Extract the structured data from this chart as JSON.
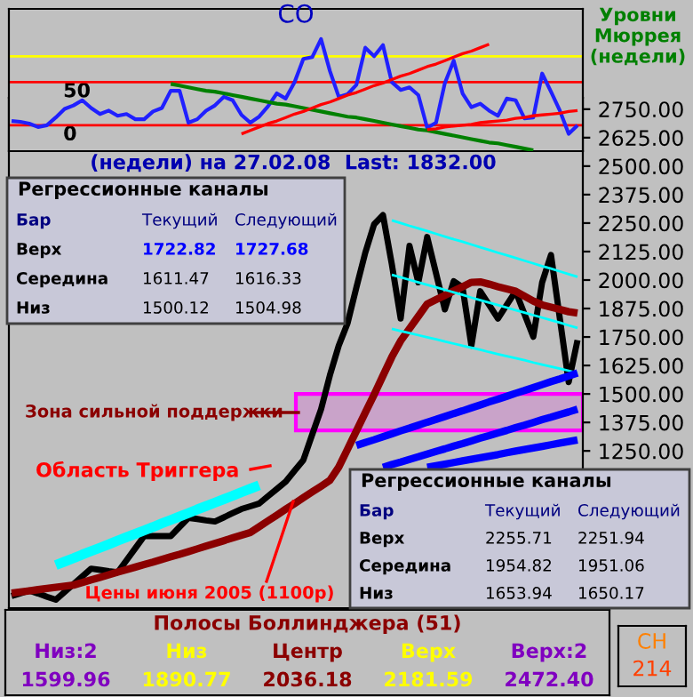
{
  "chart_data": [
    {
      "type": "line",
      "title": "CO",
      "categories": [
        null,
        null,
        null,
        null,
        null,
        null,
        null,
        null,
        null,
        null,
        null,
        null,
        null,
        null,
        null,
        null,
        null,
        null,
        null,
        null,
        null,
        null,
        null,
        null,
        null,
        null,
        null,
        null,
        null,
        null,
        null,
        null,
        null,
        null,
        null,
        null,
        null,
        null,
        null,
        null,
        null,
        null,
        null,
        null,
        null,
        null,
        null,
        null,
        null,
        null,
        null,
        null,
        null,
        null,
        null,
        null,
        null,
        null,
        null,
        null,
        null,
        null,
        null,
        null,
        null
      ],
      "ylim": [
        -30,
        135
      ],
      "yticks": [
        0,
        50
      ],
      "tick_labels": "y",
      "grid": false,
      "legend": false,
      "marker": "none",
      "ref_lines": [
        {
          "axis": "y",
          "value": 0,
          "color": "#ff0000"
        },
        {
          "axis": "y",
          "value": 50,
          "color": "#ff0000"
        },
        {
          "axis": "y",
          "value": 80,
          "color": "#ffff00"
        }
      ],
      "series": [
        {
          "color": "#2020ff",
          "values": [
            5,
            4,
            2,
            -2,
            0,
            9,
            19,
            23,
            29,
            20,
            13,
            17,
            11,
            13,
            7,
            7,
            16,
            20,
            40,
            40,
            3,
            7,
            17,
            23,
            33,
            29,
            12,
            3,
            10,
            22,
            37,
            31,
            50,
            77,
            79,
            100,
            63,
            33,
            36,
            47,
            90,
            80,
            93,
            50,
            41,
            44,
            35,
            -3,
            3,
            49,
            75,
            37,
            21,
            25,
            17,
            11,
            31,
            29,
            8,
            9,
            60,
            39,
            17,
            -10,
            0
          ]
        },
        {
          "color": "#008000",
          "values": [
            null,
            null,
            null,
            null,
            null,
            null,
            null,
            null,
            null,
            null,
            null,
            null,
            null,
            null,
            null,
            null,
            null,
            null,
            48,
            46,
            44,
            42,
            40,
            39,
            37,
            35,
            33,
            31,
            29,
            27,
            25,
            24,
            22,
            20,
            18,
            16,
            14,
            12,
            10,
            9,
            7,
            5,
            3,
            1,
            -1,
            -3,
            -5,
            -6,
            -8,
            -10,
            -12,
            -14,
            -16,
            -18,
            -20,
            -21,
            -23,
            -25,
            -27,
            -29,
            null,
            null,
            null,
            null,
            null
          ]
        },
        {
          "color": "#ff0000",
          "values": [
            null,
            null,
            null,
            null,
            null,
            null,
            null,
            null,
            null,
            null,
            null,
            null,
            null,
            null,
            null,
            null,
            null,
            null,
            null,
            null,
            null,
            null,
            null,
            null,
            null,
            null,
            -10,
            -6,
            -2,
            2,
            5,
            9,
            13,
            16,
            20,
            24,
            27,
            31,
            35,
            38,
            42,
            46,
            49,
            53,
            57,
            60,
            64,
            68,
            71,
            75,
            79,
            83,
            86,
            90,
            94,
            null,
            null,
            null,
            null,
            null,
            null,
            null,
            null,
            null,
            null
          ]
        },
        {
          "color": "#ff0000",
          "values": [
            null,
            null,
            null,
            null,
            null,
            null,
            null,
            null,
            null,
            null,
            null,
            null,
            null,
            null,
            null,
            null,
            null,
            null,
            null,
            null,
            null,
            null,
            null,
            null,
            null,
            null,
            null,
            null,
            null,
            null,
            null,
            null,
            null,
            null,
            null,
            null,
            null,
            null,
            null,
            null,
            null,
            null,
            null,
            null,
            null,
            null,
            null,
            -5,
            -4,
            -2,
            -1,
            0,
            1,
            3,
            4,
            5,
            6,
            8,
            9,
            11,
            12,
            13,
            14,
            16,
            17
          ]
        }
      ]
    },
    {
      "type": "line",
      "title": "(недели) на 27.02.08  Last: 1832.00",
      "ylabel": "Уровни Мюррея (недели)",
      "categories": [
        null,
        null,
        null,
        null,
        null,
        null,
        null,
        null,
        null,
        null,
        null,
        null,
        null,
        null,
        null,
        null,
        null,
        null,
        null,
        null,
        null,
        null,
        null,
        null,
        null,
        null,
        null,
        null,
        null,
        null,
        null,
        null,
        null,
        null,
        null,
        null,
        null,
        null,
        null,
        null,
        null,
        null,
        null,
        null,
        null,
        null,
        null,
        null,
        null,
        null,
        null,
        null,
        null,
        null,
        null,
        null,
        null,
        null,
        null,
        null,
        null,
        null,
        null,
        null,
        null
      ],
      "ylim": [
        560,
        2800
      ],
      "tick_labels": "y",
      "grid": false,
      "legend": false,
      "marker": "none",
      "yticks": [
        {
          "value": 1250,
          "label": "1250.00"
        },
        {
          "value": 1375,
          "label": "1375.00"
        },
        {
          "value": 1500,
          "label": "1500.00"
        },
        {
          "value": 1625,
          "label": "1625.00"
        },
        {
          "value": 1750,
          "label": "1750.00"
        },
        {
          "value": 1875,
          "label": "1875.00"
        },
        {
          "value": 2000,
          "label": "2000.00"
        },
        {
          "value": 2125,
          "label": "2125.00"
        },
        {
          "value": 2250,
          "label": "2250.00"
        },
        {
          "value": 2375,
          "label": "2375.00"
        },
        {
          "value": 2500,
          "label": "2500.00"
        },
        {
          "value": 2625,
          "label": "2625.00"
        },
        {
          "value": 2750,
          "label": "2750.00"
        }
      ],
      "bands": [
        {
          "axis": "y",
          "from": 1340,
          "to": 1500,
          "color": "#ff00ff"
        }
      ],
      "annotations": [
        "Зона сильной поддержки",
        "Область Триггера",
        "Цены июня 2005 (1100р)",
        "Регрессионные каналы",
        "Бар",
        "Текущий",
        "Следующий",
        "Верх",
        "1722.82",
        "1727.68",
        "Середина",
        "1611.47",
        "1616.33",
        "Низ",
        "1500.12",
        "1504.98",
        "Регрессионные каналы",
        "Бар",
        "Текущий",
        "Следующий",
        "Верх",
        "2255.71",
        "2251.94",
        "Середина",
        "1954.82",
        "1951.06",
        "Низ",
        "1653.94",
        "1650.17"
      ],
      "series": [
        {
          "color": "#000000",
          "values": [
            613,
            625,
            637,
            624,
            610,
            597,
            631,
            665,
            699,
            733,
            728,
            722,
            717,
            770,
            823,
            876,
            876,
            876,
            876,
            916,
            956,
            951,
            945,
            940,
            958,
            977,
            995,
            1007,
            1019,
            1051,
            1083,
            1115,
            1163,
            1210,
            1322,
            1433,
            1582,
            1712,
            1811,
            1968,
            2120,
            2245,
            2285,
            2070,
            1831,
            2150,
            1990,
            2189,
            2030,
            1871,
            1995,
            1968,
            1712,
            1951,
            1891,
            1831,
            1891,
            1951,
            1851,
            1751,
            1990,
            2110,
            1831,
            1552,
            1736
          ]
        },
        {
          "color": "#8b0000",
          "values": [
            626,
            631,
            636,
            641,
            646,
            651,
            656,
            661,
            672,
            684,
            695,
            706,
            718,
            729,
            740,
            751,
            762,
            774,
            785,
            796,
            808,
            820,
            832,
            844,
            856,
            868,
            880,
            892,
            917,
            943,
            968,
            994,
            1019,
            1045,
            1070,
            1095,
            1121,
            1179,
            1258,
            1338,
            1418,
            1497,
            1580,
            1662,
            1733,
            1787,
            1841,
            1895,
            1914,
            1933,
            1952,
            1971,
            1990,
            1992,
            1982,
            1971,
            1961,
            1951,
            1929,
            1908,
            1891,
            1881,
            1871,
            1861,
            1855
          ]
        },
        {
          "color": "#00ffff",
          "values": [
            null,
            null,
            null,
            null,
            null,
            null,
            null,
            null,
            null,
            null,
            null,
            null,
            null,
            null,
            null,
            null,
            null,
            null,
            null,
            null,
            null,
            null,
            null,
            null,
            null,
            null,
            null,
            null,
            null,
            null,
            null,
            null,
            null,
            null,
            null,
            null,
            null,
            null,
            null,
            null,
            null,
            null,
            null,
            2262,
            2250,
            2238,
            2227,
            2215,
            2203,
            2191,
            2179,
            2168,
            2156,
            2144,
            2132,
            2120,
            2109,
            2097,
            2085,
            2073,
            2061,
            2050,
            2038,
            2026,
            2014
          ]
        },
        {
          "color": "#00ffff",
          "values": [
            null,
            null,
            null,
            null,
            null,
            null,
            null,
            null,
            null,
            null,
            null,
            null,
            null,
            null,
            null,
            null,
            null,
            null,
            null,
            null,
            null,
            null,
            null,
            null,
            null,
            null,
            null,
            null,
            null,
            null,
            null,
            null,
            null,
            null,
            null,
            null,
            null,
            null,
            null,
            null,
            null,
            null,
            null,
            2023,
            2012,
            2001,
            1990,
            1979,
            1968,
            1957,
            1946,
            1935,
            1923,
            1912,
            1901,
            1890,
            1879,
            1868,
            1857,
            1846,
            1835,
            1824,
            1813,
            1801,
            1790
          ]
        },
        {
          "color": "#00ffff",
          "values": [
            null,
            null,
            null,
            null,
            null,
            null,
            null,
            null,
            null,
            null,
            null,
            null,
            null,
            null,
            null,
            null,
            null,
            null,
            null,
            null,
            null,
            null,
            null,
            null,
            null,
            null,
            null,
            null,
            null,
            null,
            null,
            null,
            null,
            null,
            null,
            null,
            null,
            null,
            null,
            null,
            null,
            null,
            null,
            1786,
            1776,
            1767,
            1758,
            1749,
            1740,
            1730,
            1721,
            1712,
            1703,
            1694,
            1684,
            1675,
            1666,
            1657,
            1648,
            1638,
            1629,
            1620,
            1611,
            1602,
            1592
          ]
        },
        {
          "color": "#00ffff",
          "values": [
            null,
            null,
            null,
            null,
            null,
            749,
            764,
            779,
            795,
            810,
            825,
            840,
            856,
            871,
            886,
            901,
            916,
            932,
            947,
            962,
            977,
            993,
            1008,
            1023,
            1038,
            1053,
            1069,
            1084,
            1099,
            null,
            null,
            null,
            null,
            null,
            null,
            null,
            null,
            null,
            null,
            null,
            null,
            null,
            null,
            null,
            null,
            null,
            null,
            null,
            null,
            null,
            null,
            null,
            null,
            null,
            null,
            null,
            null,
            null,
            null,
            null,
            null,
            null,
            null,
            null,
            null
          ]
        },
        {
          "color": "#0000ff",
          "values": [
            null,
            null,
            null,
            null,
            null,
            null,
            null,
            null,
            null,
            null,
            null,
            null,
            null,
            null,
            null,
            null,
            null,
            null,
            null,
            null,
            null,
            null,
            null,
            null,
            null,
            null,
            null,
            null,
            null,
            null,
            null,
            null,
            null,
            null,
            null,
            null,
            null,
            null,
            null,
            1274,
            1287,
            1299,
            1312,
            1325,
            1338,
            1350,
            1363,
            1376,
            1388,
            1401,
            1414,
            1426,
            1439,
            1452,
            1465,
            1477,
            1490,
            1503,
            1515,
            1528,
            1541,
            1554,
            1566,
            1579,
            1592
          ]
        },
        {
          "color": "#0000ff",
          "values": [
            null,
            null,
            null,
            null,
            null,
            null,
            null,
            null,
            null,
            null,
            null,
            null,
            null,
            null,
            null,
            null,
            null,
            null,
            null,
            null,
            null,
            null,
            null,
            null,
            null,
            null,
            null,
            null,
            null,
            null,
            null,
            null,
            null,
            null,
            null,
            null,
            null,
            null,
            null,
            null,
            null,
            null,
            1178,
            1190,
            1201,
            1213,
            1224,
            1236,
            1248,
            1259,
            1271,
            1282,
            1294,
            1306,
            1317,
            1329,
            1340,
            1352,
            1363,
            1375,
            1387,
            1398,
            1410,
            1421,
            1433
          ]
        },
        {
          "color": "#0000ff",
          "values": [
            null,
            null,
            null,
            null,
            null,
            null,
            null,
            null,
            null,
            null,
            null,
            null,
            null,
            null,
            null,
            null,
            null,
            null,
            null,
            null,
            null,
            null,
            null,
            null,
            null,
            null,
            null,
            null,
            null,
            null,
            null,
            null,
            null,
            null,
            null,
            null,
            null,
            null,
            null,
            null,
            null,
            null,
            null,
            null,
            null,
            null,
            null,
            1178,
            1185,
            1192,
            1199,
            1206,
            1213,
            1220,
            1227,
            1234,
            1242,
            1249,
            1256,
            1263,
            1270,
            1277,
            1284,
            1291,
            1298
          ]
        }
      ]
    },
    {
      "type": "other",
      "title": "Полосы Боллинджера (51)",
      "annotations": [
        "Низ:2",
        "Низ",
        "Центр",
        "Верх",
        "Верх:2",
        "1599.96",
        "1890.77",
        "2036.18",
        "2181.59",
        "2472.40"
      ]
    },
    {
      "type": "other",
      "annotations": [
        "CH",
        "214"
      ]
    }
  ]
}
